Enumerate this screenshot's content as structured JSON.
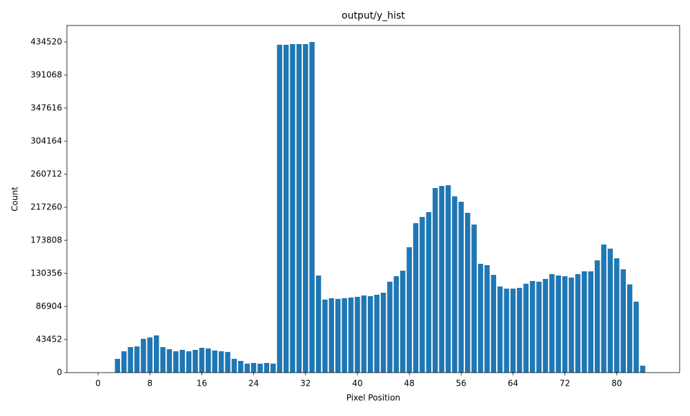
{
  "chart_data": {
    "type": "bar",
    "title": "output/y_hist",
    "xlabel": "Pixel Position",
    "ylabel": "Count",
    "x": [
      0,
      1,
      2,
      3,
      4,
      5,
      6,
      7,
      8,
      9,
      10,
      11,
      12,
      13,
      14,
      15,
      16,
      17,
      18,
      19,
      20,
      21,
      22,
      23,
      24,
      25,
      26,
      27,
      28,
      29,
      30,
      31,
      32,
      33,
      34,
      35,
      36,
      37,
      38,
      39,
      40,
      41,
      42,
      43,
      44,
      45,
      46,
      47,
      48,
      49,
      50,
      51,
      52,
      53,
      54,
      55,
      56,
      57,
      58,
      59,
      60,
      61,
      62,
      63,
      64,
      65,
      66,
      67,
      68,
      69,
      70,
      71,
      72,
      73,
      74,
      75,
      76,
      77,
      78,
      79,
      80,
      81,
      82,
      83,
      84
    ],
    "values": [
      0,
      0,
      0,
      18100,
      28000,
      33500,
      34400,
      44400,
      46200,
      48900,
      33500,
      30800,
      28000,
      29900,
      28000,
      29900,
      32600,
      31700,
      29000,
      28000,
      27200,
      18100,
      15400,
      11800,
      12700,
      11800,
      12700,
      11800,
      430900,
      430900,
      431800,
      431800,
      431800,
      434520,
      127600,
      96000,
      97800,
      96900,
      97800,
      98700,
      99600,
      101400,
      100500,
      102300,
      105000,
      119500,
      126700,
      134000,
      164800,
      196400,
      204600,
      210900,
      242600,
      245300,
      246200,
      231700,
      224500,
      210000,
      194600,
      143000,
      141200,
      128500,
      113200,
      110400,
      110400,
      111300,
      116800,
      120400,
      119500,
      123100,
      129500,
      127600,
      126700,
      124900,
      129500,
      133100,
      133100,
      147600,
      168400,
      162900,
      150300,
      135800,
      115900,
      93200,
      9100
    ],
    "color": "#1f77b4",
    "xlim": [
      -4.8,
      89.7
    ],
    "xticks": [
      0,
      8,
      16,
      24,
      32,
      40,
      48,
      56,
      64,
      72,
      80
    ],
    "ylim": [
      0,
      456246
    ],
    "yticks": [
      0,
      43452,
      86904,
      130356,
      173808,
      217260,
      260712,
      304164,
      347616,
      391068,
      434520
    ]
  }
}
